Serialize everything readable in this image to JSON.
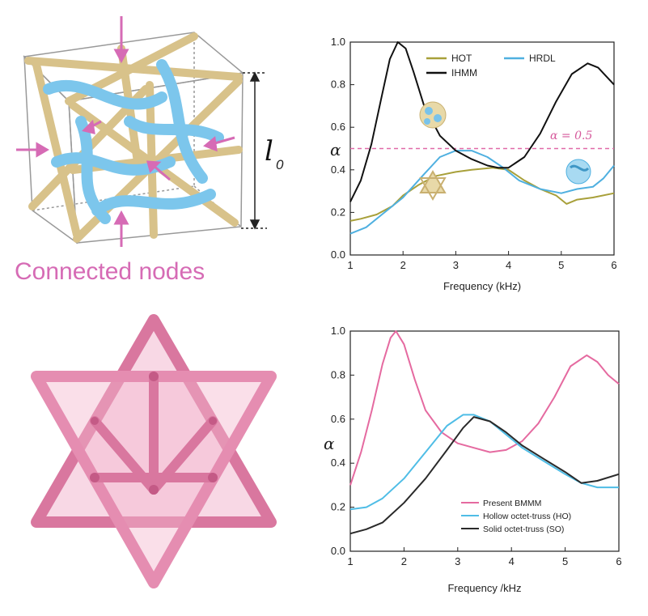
{
  "panel_a": {
    "caption": "Connected nodes",
    "dimension_label": "l",
    "dimension_sub": "0"
  },
  "colors": {
    "hot": "#a8a03a",
    "hrdl": "#4fb0e0",
    "ihmm": "#111111",
    "pink": "#e56aa0",
    "ho": "#4fbde6",
    "so": "#2a2a2a",
    "threshold": "#e06aa8"
  },
  "chart_data": [
    {
      "type": "line",
      "title": "",
      "xlabel": "Frequency (kHz)",
      "ylabel": "α",
      "xlim": [
        1,
        6
      ],
      "ylim": [
        0.0,
        1.0
      ],
      "xticks": [
        "1",
        "2",
        "3",
        "4",
        "5",
        "6"
      ],
      "yticks": [
        "0.0",
        "0.2",
        "0.4",
        "0.6",
        "0.8",
        "1.0"
      ],
      "legend_position": "top",
      "annotation": "α = 0.5",
      "threshold": 0.5,
      "series": [
        {
          "name": "HOT",
          "key": "hot",
          "x": [
            1.0,
            1.2,
            1.5,
            1.8,
            2.0,
            2.3,
            2.6,
            3.0,
            3.3,
            3.7,
            4.0,
            4.3,
            4.6,
            4.9,
            5.1,
            5.3,
            5.6,
            6.0
          ],
          "y": [
            0.16,
            0.17,
            0.19,
            0.23,
            0.28,
            0.33,
            0.37,
            0.39,
            0.4,
            0.41,
            0.4,
            0.35,
            0.31,
            0.28,
            0.24,
            0.26,
            0.27,
            0.29
          ]
        },
        {
          "name": "HRDL",
          "key": "hrdl",
          "x": [
            1.0,
            1.3,
            1.6,
            2.0,
            2.4,
            2.7,
            3.0,
            3.3,
            3.6,
            3.9,
            4.2,
            4.6,
            5.0,
            5.3,
            5.6,
            5.8,
            6.0
          ],
          "y": [
            0.1,
            0.13,
            0.19,
            0.27,
            0.38,
            0.46,
            0.49,
            0.49,
            0.46,
            0.41,
            0.35,
            0.31,
            0.29,
            0.31,
            0.32,
            0.36,
            0.42
          ]
        },
        {
          "name": "IHMM",
          "key": "ihmm",
          "x": [
            1.0,
            1.2,
            1.4,
            1.6,
            1.75,
            1.9,
            2.05,
            2.2,
            2.4,
            2.7,
            3.0,
            3.3,
            3.6,
            3.8,
            4.0,
            4.3,
            4.6,
            4.9,
            5.2,
            5.5,
            5.7,
            5.85,
            6.0
          ],
          "y": [
            0.25,
            0.35,
            0.52,
            0.75,
            0.92,
            1.0,
            0.97,
            0.86,
            0.7,
            0.56,
            0.49,
            0.45,
            0.42,
            0.41,
            0.41,
            0.46,
            0.57,
            0.72,
            0.85,
            0.9,
            0.88,
            0.84,
            0.8
          ]
        }
      ]
    },
    {
      "type": "line",
      "title": "",
      "xlabel": "Frequency /kHz",
      "ylabel": "α",
      "xlim": [
        1,
        6
      ],
      "ylim": [
        0.0,
        1.0
      ],
      "xticks": [
        "1",
        "2",
        "3",
        "4",
        "5",
        "6"
      ],
      "yticks": [
        "0.0",
        "0.2",
        "0.4",
        "0.6",
        "0.8",
        "1.0"
      ],
      "legend_position": "bottom-right",
      "series": [
        {
          "name": "Present BMMM",
          "key": "pink",
          "x": [
            1.0,
            1.2,
            1.4,
            1.6,
            1.75,
            1.85,
            2.0,
            2.2,
            2.4,
            2.7,
            3.0,
            3.3,
            3.6,
            3.9,
            4.2,
            4.5,
            4.8,
            5.1,
            5.4,
            5.6,
            5.8,
            6.0
          ],
          "y": [
            0.3,
            0.45,
            0.64,
            0.85,
            0.97,
            1.0,
            0.94,
            0.78,
            0.64,
            0.54,
            0.49,
            0.47,
            0.45,
            0.46,
            0.5,
            0.58,
            0.7,
            0.84,
            0.89,
            0.86,
            0.8,
            0.76
          ]
        },
        {
          "name": "Hollow octet-truss (HO)",
          "key": "ho",
          "x": [
            1.0,
            1.3,
            1.6,
            2.0,
            2.4,
            2.8,
            3.1,
            3.3,
            3.6,
            3.9,
            4.2,
            4.6,
            5.0,
            5.3,
            5.6,
            6.0
          ],
          "y": [
            0.19,
            0.2,
            0.24,
            0.33,
            0.45,
            0.57,
            0.62,
            0.62,
            0.59,
            0.53,
            0.47,
            0.41,
            0.35,
            0.31,
            0.29,
            0.29
          ]
        },
        {
          "name": "Solid octet-truss (SO)",
          "key": "so",
          "x": [
            1.0,
            1.3,
            1.6,
            2.0,
            2.4,
            2.8,
            3.1,
            3.3,
            3.6,
            3.9,
            4.2,
            4.6,
            5.0,
            5.3,
            5.6,
            6.0
          ],
          "y": [
            0.08,
            0.1,
            0.13,
            0.22,
            0.33,
            0.46,
            0.56,
            0.61,
            0.59,
            0.54,
            0.48,
            0.42,
            0.36,
            0.31,
            0.32,
            0.35
          ]
        }
      ]
    }
  ]
}
